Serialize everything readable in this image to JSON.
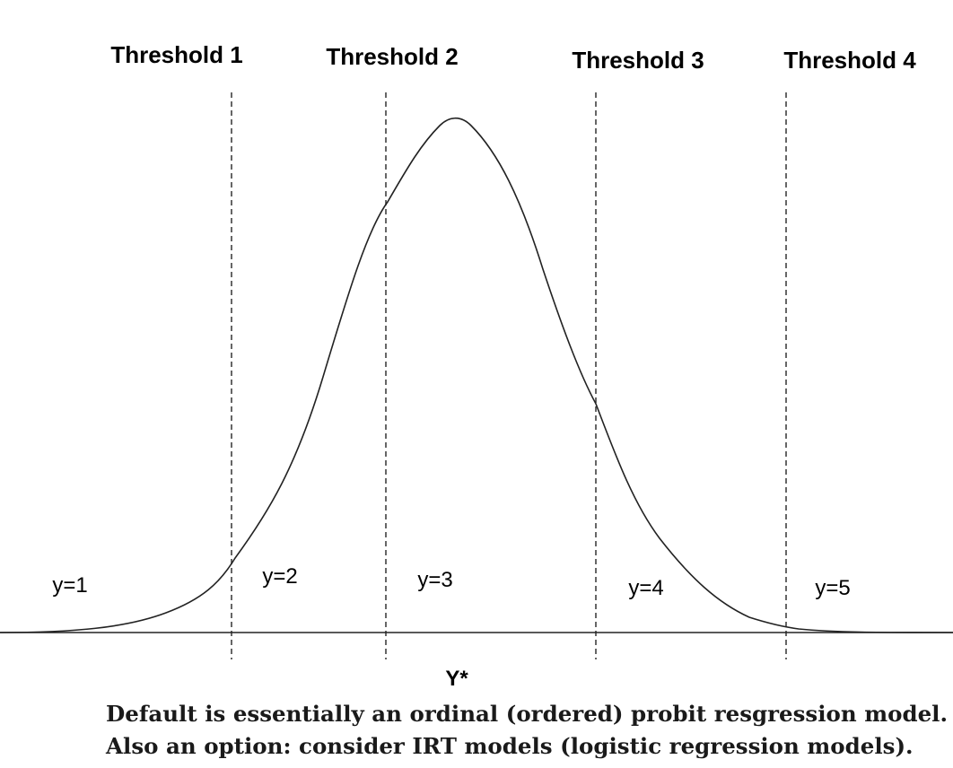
{
  "diagram": {
    "thresholds": [
      {
        "label": "Threshold 1"
      },
      {
        "label": "Threshold 2"
      },
      {
        "label": "Threshold 3"
      },
      {
        "label": "Threshold 4"
      }
    ],
    "regions": [
      {
        "label": "y=1"
      },
      {
        "label": "y=2"
      },
      {
        "label": "y=3"
      },
      {
        "label": "y=4"
      },
      {
        "label": "y=5"
      }
    ],
    "axis_label": "Y*",
    "curve": {
      "shape": "bell-shaped density",
      "color": "#222222"
    },
    "threshold_line_style": "dashed"
  },
  "caption": {
    "line1": "Default is essentially an ordinal (ordered) probit resgression model.",
    "line2": "Also an option: consider IRT models (logistic regression models)."
  }
}
